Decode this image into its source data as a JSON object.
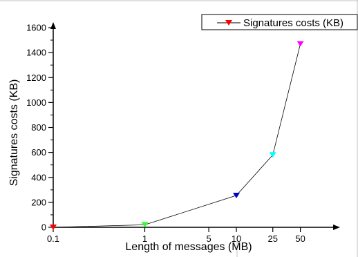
{
  "chart_data": {
    "type": "line",
    "title": "",
    "xlabel": "Length of messages (MB)",
    "ylabel": "Signatures costs (KB)",
    "x_scale": "log",
    "x_ticks": [
      "0.1",
      "1",
      "5",
      "10",
      "25",
      "50"
    ],
    "x_tick_values": [
      0.1,
      1,
      5,
      10,
      25,
      50
    ],
    "ylim": [
      0,
      1600
    ],
    "y_ticks": [
      "0",
      "200",
      "400",
      "600",
      "800",
      "1000",
      "1200",
      "1400",
      "1600"
    ],
    "legend_position": "top-right",
    "line_color": "#000000",
    "series": [
      {
        "name": "Signatures costs (KB)",
        "marker": "triangle-down",
        "x": [
          0.1,
          1,
          10,
          25,
          50
        ],
        "y": [
          0,
          20,
          255,
          580,
          1470
        ],
        "point_colors": [
          "#ff0000",
          "#33ff33",
          "#0000cc",
          "#00ffff",
          "#ff00ff"
        ],
        "legend_marker_color": "#ff0000"
      }
    ]
  }
}
